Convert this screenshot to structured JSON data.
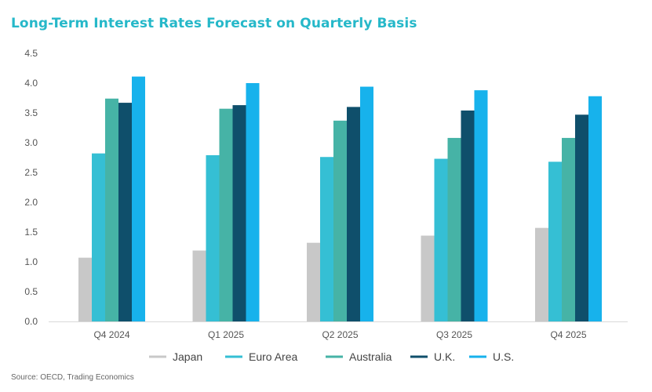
{
  "header": {
    "title": "Long-Term Interest Rates Forecast on Quarterly Basis"
  },
  "footer": {
    "source": "Source: OECD, Trading Economics"
  },
  "colors": {
    "title": "#26b8c9",
    "axis_text": "#555555",
    "series": [
      "#c8c8c8",
      "#35bfd4",
      "#46b3a6",
      "#0f4f6b",
      "#17b2ec"
    ]
  },
  "chart_data": {
    "type": "bar",
    "categories": [
      "Q4 2024",
      "Q1 2025",
      "Q2 2025",
      "Q3 2025",
      "Q4 2025"
    ],
    "series": [
      {
        "name": "Japan",
        "values": [
          1.07,
          1.19,
          1.32,
          1.44,
          1.57
        ]
      },
      {
        "name": "Euro Area",
        "values": [
          2.82,
          2.79,
          2.76,
          2.73,
          2.68
        ]
      },
      {
        "name": "Australia",
        "values": [
          3.74,
          3.57,
          3.37,
          3.08,
          3.08
        ]
      },
      {
        "name": "U.K.",
        "values": [
          3.67,
          3.63,
          3.6,
          3.54,
          3.47
        ]
      },
      {
        "name": "U.S.",
        "values": [
          4.11,
          4.0,
          3.94,
          3.88,
          3.78
        ]
      }
    ],
    "title": "Long-Term Interest Rates Forecast on Quarterly Basis",
    "xlabel": "",
    "ylabel": "",
    "ylim": [
      0,
      4.5
    ],
    "yticks": [
      "0.0",
      "0.5",
      "1.0",
      "1.5",
      "2.0",
      "2.5",
      "3.0",
      "3.5",
      "4.0",
      "4.5"
    ],
    "grid": false,
    "legend": "bottom"
  }
}
